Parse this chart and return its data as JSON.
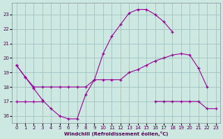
{
  "xlabel": "Windchill (Refroidissement éolien,°C)",
  "bg_color": "#cce8e0",
  "line_color": "#990099",
  "grid_color": "#99bbbb",
  "x_ticks": [
    0,
    1,
    2,
    3,
    4,
    5,
    6,
    7,
    8,
    9,
    10,
    11,
    12,
    13,
    14,
    15,
    16,
    17,
    18,
    19,
    20,
    21,
    22,
    23
  ],
  "y_ticks": [
    16,
    17,
    18,
    19,
    20,
    21,
    22,
    23
  ],
  "ylim": [
    15.5,
    23.8
  ],
  "xlim": [
    -0.5,
    23.5
  ],
  "series": [
    [
      19.5,
      18.7,
      17.9,
      17.1,
      16.5,
      16.0,
      15.8,
      15.8,
      17.5,
      18.5,
      20.3,
      21.5,
      22.3,
      23.1,
      23.35,
      23.35,
      23.0,
      22.5,
      21.8,
      null,
      null,
      null,
      null,
      null
    ],
    [
      19.5,
      18.7,
      18.0,
      18.0,
      18.0,
      18.0,
      18.0,
      18.0,
      18.0,
      18.5,
      18.5,
      18.5,
      18.5,
      19.0,
      19.2,
      19.5,
      19.8,
      20.0,
      20.2,
      20.3,
      20.2,
      19.3,
      18.0,
      null
    ],
    [
      17.0,
      17.0,
      17.0,
      17.0,
      null,
      null,
      null,
      null,
      null,
      null,
      null,
      null,
      null,
      null,
      null,
      null,
      17.0,
      17.0,
      17.0,
      17.0,
      17.0,
      17.0,
      16.5,
      16.5
    ]
  ]
}
